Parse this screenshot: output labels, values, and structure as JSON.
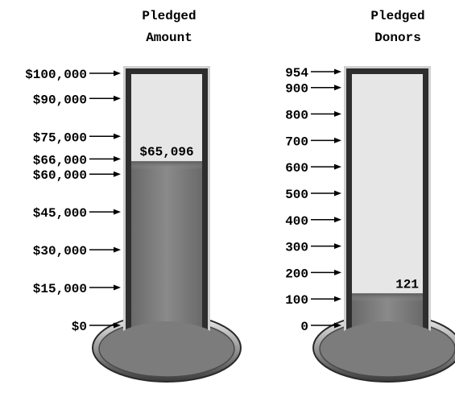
{
  "chart_data": [
    {
      "type": "thermometer",
      "title_lines": [
        "Pledged",
        "Amount"
      ],
      "ticks": [
        {
          "label": "$100,000",
          "value": 100000
        },
        {
          "label": "$90,000",
          "value": 90000
        },
        {
          "label": "$75,000",
          "value": 75000
        },
        {
          "label": "$66,000",
          "value": 66000
        },
        {
          "label": "$60,000",
          "value": 60000
        },
        {
          "label": "$45,000",
          "value": 45000
        },
        {
          "label": "$30,000",
          "value": 30000
        },
        {
          "label": "$15,000",
          "value": 15000
        },
        {
          "label": "$0",
          "value": 0
        }
      ],
      "max": 100000,
      "value": 65096,
      "value_label": "$65,096"
    },
    {
      "type": "thermometer",
      "title_lines": [
        "Pledged",
        "Donors"
      ],
      "ticks": [
        {
          "label": "954",
          "value": 954
        },
        {
          "label": "900",
          "value": 900
        },
        {
          "label": "800",
          "value": 800
        },
        {
          "label": "700",
          "value": 700
        },
        {
          "label": "600",
          "value": 600
        },
        {
          "label": "500",
          "value": 500
        },
        {
          "label": "400",
          "value": 400
        },
        {
          "label": "300",
          "value": 300
        },
        {
          "label": "200",
          "value": 200
        },
        {
          "label": "100",
          "value": 100
        },
        {
          "label": "0",
          "value": 0
        }
      ],
      "max": 954,
      "value": 121,
      "value_label": "121"
    }
  ],
  "colors": {
    "tube_frame": "#2e2e2e",
    "tube_empty": "#e6e6e6",
    "fluid": "#7c7c7c",
    "fluid_dark": "#5f5f5f",
    "bulb": "#7c7c7c",
    "bulb_rim": "#3a3a3a"
  }
}
